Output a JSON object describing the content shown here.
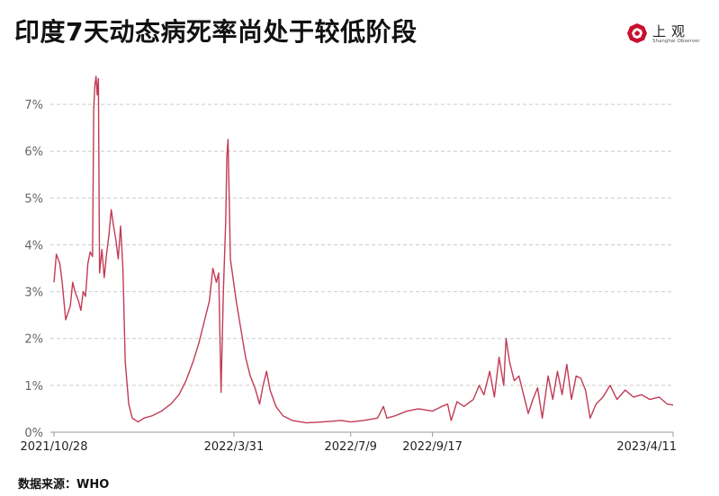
{
  "title": "印度7天动态病死率尚处于较低阶段",
  "logo": {
    "cn": "上观",
    "en": "Shanghai Observer"
  },
  "source": "数据来源：WHO",
  "colors": {
    "line": "#c23b55",
    "grid": "#cccccc",
    "axis": "#999999",
    "logo": "#c8102e"
  },
  "chart_data": {
    "type": "line",
    "ylim": [
      0,
      7.5
    ],
    "y_ticks": [
      0,
      1,
      2,
      3,
      4,
      5,
      6,
      7
    ],
    "y_tick_labels": [
      "0%",
      "1%",
      "2%",
      "3%",
      "4%",
      "5%",
      "6%",
      "7%"
    ],
    "grid": "horizontal dashed",
    "x_tick_labels": [
      "2021/10/28",
      "2022/3/31",
      "2022/7/9",
      "2022/9/17",
      "2023/4/11"
    ],
    "x_tick_dates": [
      "2021-10-28",
      "2022-03-31",
      "2022-07-09",
      "2022-09-17",
      "2023-04-11"
    ],
    "x_range": [
      "2021-10-28",
      "2023-04-11"
    ],
    "series": [
      {
        "points": [
          [
            "2021-10-28",
            3.2
          ],
          [
            "2021-10-30",
            3.8
          ],
          [
            "2021-11-02",
            3.6
          ],
          [
            "2021-11-04",
            3.2
          ],
          [
            "2021-11-07",
            2.4
          ],
          [
            "2021-11-09",
            2.55
          ],
          [
            "2021-11-11",
            2.7
          ],
          [
            "2021-11-13",
            3.2
          ],
          [
            "2021-11-15",
            3.0
          ],
          [
            "2021-11-18",
            2.8
          ],
          [
            "2021-11-20",
            2.6
          ],
          [
            "2021-11-22",
            3.0
          ],
          [
            "2021-11-24",
            2.9
          ],
          [
            "2021-11-26",
            3.6
          ],
          [
            "2021-11-28",
            3.85
          ],
          [
            "2021-11-30",
            3.75
          ],
          [
            "2021-12-01",
            6.9
          ],
          [
            "2021-12-02",
            7.4
          ],
          [
            "2021-12-03",
            7.6
          ],
          [
            "2021-12-04",
            7.2
          ],
          [
            "2021-12-05",
            7.55
          ],
          [
            "2021-12-06",
            3.4
          ],
          [
            "2021-12-08",
            3.9
          ],
          [
            "2021-12-10",
            3.3
          ],
          [
            "2021-12-12",
            3.8
          ],
          [
            "2021-12-14",
            4.2
          ],
          [
            "2021-12-16",
            4.75
          ],
          [
            "2021-12-18",
            4.4
          ],
          [
            "2021-12-20",
            4.1
          ],
          [
            "2021-12-22",
            3.7
          ],
          [
            "2021-12-24",
            4.4
          ],
          [
            "2021-12-26",
            3.5
          ],
          [
            "2021-12-28",
            1.5
          ],
          [
            "2021-12-31",
            0.6
          ],
          [
            "2022-01-03",
            0.3
          ],
          [
            "2022-01-08",
            0.22
          ],
          [
            "2022-01-13",
            0.3
          ],
          [
            "2022-01-20",
            0.35
          ],
          [
            "2022-01-28",
            0.45
          ],
          [
            "2022-02-05",
            0.6
          ],
          [
            "2022-02-12",
            0.8
          ],
          [
            "2022-02-18",
            1.1
          ],
          [
            "2022-02-24",
            1.5
          ],
          [
            "2022-03-01",
            1.9
          ],
          [
            "2022-03-06",
            2.4
          ],
          [
            "2022-03-10",
            2.8
          ],
          [
            "2022-03-13",
            3.5
          ],
          [
            "2022-03-16",
            3.2
          ],
          [
            "2022-03-18",
            3.4
          ],
          [
            "2022-03-20",
            0.85
          ],
          [
            "2022-03-22",
            3.0
          ],
          [
            "2022-03-24",
            4.5
          ],
          [
            "2022-03-25",
            5.9
          ],
          [
            "2022-03-26",
            6.25
          ],
          [
            "2022-03-28",
            3.7
          ],
          [
            "2022-04-02",
            2.8
          ],
          [
            "2022-04-06",
            2.2
          ],
          [
            "2022-04-10",
            1.6
          ],
          [
            "2022-04-14",
            1.2
          ],
          [
            "2022-04-18",
            0.95
          ],
          [
            "2022-04-22",
            0.6
          ],
          [
            "2022-04-25",
            1.0
          ],
          [
            "2022-04-28",
            1.3
          ],
          [
            "2022-05-01",
            0.9
          ],
          [
            "2022-05-06",
            0.55
          ],
          [
            "2022-05-12",
            0.35
          ],
          [
            "2022-05-20",
            0.25
          ],
          [
            "2022-06-01",
            0.2
          ],
          [
            "2022-06-15",
            0.22
          ],
          [
            "2022-07-01",
            0.25
          ],
          [
            "2022-07-09",
            0.22
          ],
          [
            "2022-07-20",
            0.25
          ],
          [
            "2022-08-01",
            0.3
          ],
          [
            "2022-08-06",
            0.55
          ],
          [
            "2022-08-09",
            0.3
          ],
          [
            "2022-08-16",
            0.35
          ],
          [
            "2022-08-26",
            0.45
          ],
          [
            "2022-09-05",
            0.5
          ],
          [
            "2022-09-17",
            0.45
          ],
          [
            "2022-09-25",
            0.55
          ],
          [
            "2022-09-30",
            0.6
          ],
          [
            "2022-10-03",
            0.25
          ],
          [
            "2022-10-08",
            0.65
          ],
          [
            "2022-10-14",
            0.55
          ],
          [
            "2022-10-22",
            0.7
          ],
          [
            "2022-10-27",
            1.0
          ],
          [
            "2022-10-31",
            0.8
          ],
          [
            "2022-11-05",
            1.3
          ],
          [
            "2022-11-09",
            0.75
          ],
          [
            "2022-11-13",
            1.6
          ],
          [
            "2022-11-17",
            1.0
          ],
          [
            "2022-11-19",
            2.0
          ],
          [
            "2022-11-22",
            1.5
          ],
          [
            "2022-11-26",
            1.1
          ],
          [
            "2022-11-30",
            1.2
          ],
          [
            "2022-12-04",
            0.8
          ],
          [
            "2022-12-08",
            0.4
          ],
          [
            "2022-12-12",
            0.7
          ],
          [
            "2022-12-16",
            0.95
          ],
          [
            "2022-12-20",
            0.3
          ],
          [
            "2022-12-25",
            1.2
          ],
          [
            "2022-12-29",
            0.7
          ],
          [
            "2023-01-02",
            1.3
          ],
          [
            "2023-01-06",
            0.8
          ],
          [
            "2023-01-10",
            1.45
          ],
          [
            "2023-01-14",
            0.7
          ],
          [
            "2023-01-18",
            1.2
          ],
          [
            "2023-01-22",
            1.15
          ],
          [
            "2023-01-26",
            0.9
          ],
          [
            "2023-01-30",
            0.3
          ],
          [
            "2023-02-04",
            0.6
          ],
          [
            "2023-02-10",
            0.75
          ],
          [
            "2023-02-16",
            1.0
          ],
          [
            "2023-02-22",
            0.7
          ],
          [
            "2023-03-01",
            0.9
          ],
          [
            "2023-03-08",
            0.75
          ],
          [
            "2023-03-15",
            0.8
          ],
          [
            "2023-03-22",
            0.7
          ],
          [
            "2023-03-30",
            0.75
          ],
          [
            "2023-04-06",
            0.6
          ],
          [
            "2023-04-11",
            0.58
          ]
        ]
      }
    ]
  }
}
